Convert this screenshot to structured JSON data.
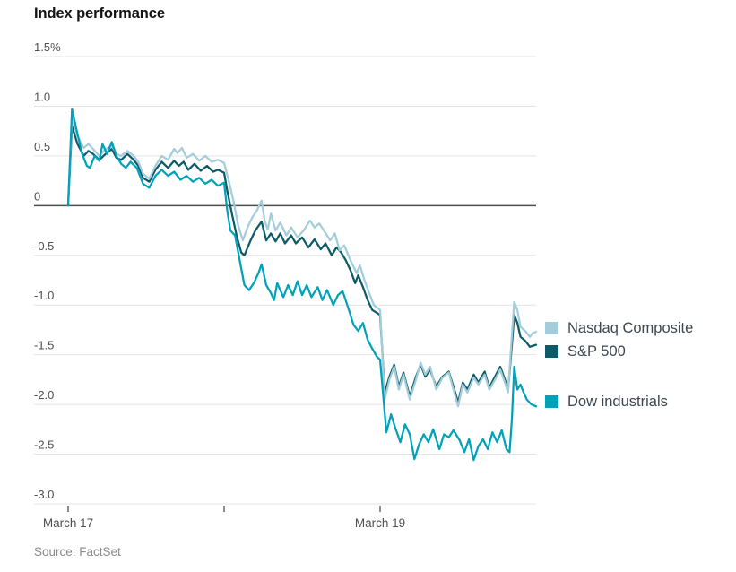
{
  "header": {
    "title": "Index performance"
  },
  "footer": {
    "source": "Source: FactSet"
  },
  "legend": [
    {
      "label": "Nasdaq Composite",
      "color": "#a3cdda"
    },
    {
      "label": "S&P 500",
      "color": "#0d5a68"
    },
    {
      "label": "Dow industrials",
      "color": "#00a2ba"
    }
  ],
  "chart_data": {
    "type": "line",
    "title": "Index performance",
    "unit": "%",
    "xlabel": "",
    "ylabel": "",
    "ylim": [
      -3.0,
      1.5
    ],
    "xlim": [
      0,
      3
    ],
    "grid": true,
    "legend_position": "right",
    "y_ticks": [
      1.5,
      1.0,
      0.5,
      0,
      -0.5,
      -1.0,
      -1.5,
      -2.0,
      -2.5,
      -3.0
    ],
    "y_tick_labels": [
      "1.5%",
      "1.0",
      "0.5",
      "0",
      "-0.5",
      "-1.0",
      "-1.5",
      "-2.0",
      "-2.5",
      "-3.0"
    ],
    "x_ticks": [
      {
        "t": 0,
        "label": "March 17"
      },
      {
        "t": 1,
        "label": ""
      },
      {
        "t": 2,
        "label": "March 19"
      }
    ],
    "colors": {
      "grid": "#e4e4e4",
      "zero_line": "#4c4c4c",
      "axis_text": "#4f4f4f",
      "tick_mark": "#666666"
    },
    "series": [
      {
        "name": "S&P 500",
        "color": "#0d5a68",
        "points": [
          [
            0.0,
            0.0
          ],
          [
            0.025,
            0.8
          ],
          [
            0.06,
            0.62
          ],
          [
            0.08,
            0.56
          ],
          [
            0.1,
            0.5
          ],
          [
            0.13,
            0.55
          ],
          [
            0.16,
            0.52
          ],
          [
            0.2,
            0.46
          ],
          [
            0.24,
            0.52
          ],
          [
            0.28,
            0.57
          ],
          [
            0.31,
            0.48
          ],
          [
            0.34,
            0.46
          ],
          [
            0.38,
            0.52
          ],
          [
            0.42,
            0.46
          ],
          [
            0.45,
            0.4
          ],
          [
            0.48,
            0.28
          ],
          [
            0.52,
            0.24
          ],
          [
            0.56,
            0.36
          ],
          [
            0.6,
            0.44
          ],
          [
            0.64,
            0.38
          ],
          [
            0.68,
            0.45
          ],
          [
            0.71,
            0.4
          ],
          [
            0.74,
            0.44
          ],
          [
            0.77,
            0.36
          ],
          [
            0.81,
            0.42
          ],
          [
            0.85,
            0.35
          ],
          [
            0.89,
            0.4
          ],
          [
            0.93,
            0.34
          ],
          [
            0.96,
            0.36
          ],
          [
            1.0,
            0.33
          ],
          [
            1.02,
            0.15
          ],
          [
            1.05,
            -0.08
          ],
          [
            1.08,
            -0.3
          ],
          [
            1.11,
            -0.47
          ],
          [
            1.13,
            -0.5
          ],
          [
            1.17,
            -0.35
          ],
          [
            1.2,
            -0.25
          ],
          [
            1.24,
            -0.16
          ],
          [
            1.27,
            -0.35
          ],
          [
            1.3,
            -0.28
          ],
          [
            1.33,
            -0.36
          ],
          [
            1.36,
            -0.28
          ],
          [
            1.39,
            -0.38
          ],
          [
            1.43,
            -0.3
          ],
          [
            1.46,
            -0.38
          ],
          [
            1.5,
            -0.32
          ],
          [
            1.54,
            -0.42
          ],
          [
            1.58,
            -0.34
          ],
          [
            1.62,
            -0.44
          ],
          [
            1.65,
            -0.38
          ],
          [
            1.69,
            -0.5
          ],
          [
            1.72,
            -0.42
          ],
          [
            1.75,
            -0.47
          ],
          [
            1.78,
            -0.55
          ],
          [
            1.81,
            -0.65
          ],
          [
            1.84,
            -0.78
          ],
          [
            1.86,
            -0.7
          ],
          [
            1.89,
            -0.82
          ],
          [
            1.92,
            -0.95
          ],
          [
            1.95,
            -1.05
          ],
          [
            1.98,
            -1.08
          ],
          [
            2.0,
            -1.1
          ],
          [
            2.03,
            -1.88
          ],
          [
            2.06,
            -1.72
          ],
          [
            2.09,
            -1.6
          ],
          [
            2.12,
            -1.82
          ],
          [
            2.15,
            -1.68
          ],
          [
            2.19,
            -1.92
          ],
          [
            2.23,
            -1.72
          ],
          [
            2.26,
            -1.6
          ],
          [
            2.29,
            -1.72
          ],
          [
            2.32,
            -1.65
          ],
          [
            2.36,
            -1.82
          ],
          [
            2.4,
            -1.72
          ],
          [
            2.44,
            -1.67
          ],
          [
            2.47,
            -1.82
          ],
          [
            2.5,
            -1.98
          ],
          [
            2.53,
            -1.78
          ],
          [
            2.56,
            -1.85
          ],
          [
            2.6,
            -1.7
          ],
          [
            2.63,
            -1.78
          ],
          [
            2.67,
            -1.67
          ],
          [
            2.7,
            -1.83
          ],
          [
            2.73,
            -1.74
          ],
          [
            2.77,
            -1.62
          ],
          [
            2.8,
            -1.75
          ],
          [
            2.82,
            -1.86
          ],
          [
            2.845,
            -1.4
          ],
          [
            2.86,
            -1.1
          ],
          [
            2.88,
            -1.18
          ],
          [
            2.9,
            -1.32
          ],
          [
            2.93,
            -1.36
          ],
          [
            2.96,
            -1.42
          ],
          [
            3.0,
            -1.4
          ]
        ]
      },
      {
        "name": "Nasdaq Composite",
        "color": "#a3cdda",
        "points": [
          [
            0.0,
            0.0
          ],
          [
            0.025,
            0.88
          ],
          [
            0.06,
            0.7
          ],
          [
            0.08,
            0.64
          ],
          [
            0.1,
            0.58
          ],
          [
            0.13,
            0.62
          ],
          [
            0.16,
            0.57
          ],
          [
            0.2,
            0.5
          ],
          [
            0.24,
            0.57
          ],
          [
            0.28,
            0.6
          ],
          [
            0.31,
            0.52
          ],
          [
            0.34,
            0.5
          ],
          [
            0.38,
            0.55
          ],
          [
            0.42,
            0.5
          ],
          [
            0.45,
            0.44
          ],
          [
            0.48,
            0.32
          ],
          [
            0.52,
            0.27
          ],
          [
            0.56,
            0.4
          ],
          [
            0.6,
            0.5
          ],
          [
            0.64,
            0.46
          ],
          [
            0.68,
            0.57
          ],
          [
            0.7,
            0.53
          ],
          [
            0.73,
            0.58
          ],
          [
            0.76,
            0.48
          ],
          [
            0.8,
            0.52
          ],
          [
            0.84,
            0.45
          ],
          [
            0.88,
            0.5
          ],
          [
            0.92,
            0.44
          ],
          [
            0.96,
            0.46
          ],
          [
            1.0,
            0.43
          ],
          [
            1.03,
            0.25
          ],
          [
            1.06,
            0.05
          ],
          [
            1.09,
            -0.2
          ],
          [
            1.12,
            -0.35
          ],
          [
            1.15,
            -0.22
          ],
          [
            1.18,
            -0.12
          ],
          [
            1.21,
            -0.05
          ],
          [
            1.24,
            0.05
          ],
          [
            1.26,
            -0.15
          ],
          [
            1.28,
            -0.24
          ],
          [
            1.3,
            -0.08
          ],
          [
            1.33,
            -0.25
          ],
          [
            1.36,
            -0.17
          ],
          [
            1.4,
            -0.3
          ],
          [
            1.43,
            -0.22
          ],
          [
            1.47,
            -0.32
          ],
          [
            1.51,
            -0.25
          ],
          [
            1.55,
            -0.15
          ],
          [
            1.58,
            -0.22
          ],
          [
            1.61,
            -0.18
          ],
          [
            1.64,
            -0.25
          ],
          [
            1.68,
            -0.35
          ],
          [
            1.71,
            -0.28
          ],
          [
            1.74,
            -0.45
          ],
          [
            1.77,
            -0.4
          ],
          [
            1.81,
            -0.55
          ],
          [
            1.85,
            -0.68
          ],
          [
            1.87,
            -0.6
          ],
          [
            1.9,
            -0.75
          ],
          [
            1.93,
            -0.88
          ],
          [
            1.96,
            -1.0
          ],
          [
            2.0,
            -1.05
          ],
          [
            2.03,
            -1.95
          ],
          [
            2.06,
            -1.75
          ],
          [
            2.09,
            -1.62
          ],
          [
            2.12,
            -1.85
          ],
          [
            2.15,
            -1.7
          ],
          [
            2.19,
            -1.95
          ],
          [
            2.23,
            -1.75
          ],
          [
            2.26,
            -1.58
          ],
          [
            2.29,
            -1.7
          ],
          [
            2.32,
            -1.62
          ],
          [
            2.36,
            -1.85
          ],
          [
            2.4,
            -1.73
          ],
          [
            2.44,
            -1.68
          ],
          [
            2.47,
            -1.85
          ],
          [
            2.5,
            -2.02
          ],
          [
            2.53,
            -1.8
          ],
          [
            2.56,
            -1.88
          ],
          [
            2.6,
            -1.73
          ],
          [
            2.63,
            -1.8
          ],
          [
            2.67,
            -1.7
          ],
          [
            2.7,
            -1.85
          ],
          [
            2.73,
            -1.77
          ],
          [
            2.77,
            -1.65
          ],
          [
            2.8,
            -1.78
          ],
          [
            2.82,
            -1.88
          ],
          [
            2.845,
            -1.3
          ],
          [
            2.86,
            -0.97
          ],
          [
            2.88,
            -1.05
          ],
          [
            2.9,
            -1.22
          ],
          [
            2.93,
            -1.26
          ],
          [
            2.96,
            -1.32
          ],
          [
            2.98,
            -1.28
          ],
          [
            3.0,
            -1.27
          ]
        ]
      },
      {
        "name": "Dow industrials",
        "color": "#00a2ba",
        "points": [
          [
            0.0,
            0.0
          ],
          [
            0.025,
            0.97
          ],
          [
            0.06,
            0.72
          ],
          [
            0.09,
            0.52
          ],
          [
            0.12,
            0.4
          ],
          [
            0.14,
            0.38
          ],
          [
            0.17,
            0.5
          ],
          [
            0.2,
            0.45
          ],
          [
            0.22,
            0.62
          ],
          [
            0.25,
            0.52
          ],
          [
            0.28,
            0.64
          ],
          [
            0.31,
            0.5
          ],
          [
            0.34,
            0.42
          ],
          [
            0.37,
            0.38
          ],
          [
            0.4,
            0.44
          ],
          [
            0.44,
            0.38
          ],
          [
            0.48,
            0.22
          ],
          [
            0.52,
            0.18
          ],
          [
            0.56,
            0.3
          ],
          [
            0.6,
            0.36
          ],
          [
            0.64,
            0.3
          ],
          [
            0.68,
            0.34
          ],
          [
            0.72,
            0.26
          ],
          [
            0.76,
            0.3
          ],
          [
            0.8,
            0.24
          ],
          [
            0.84,
            0.28
          ],
          [
            0.88,
            0.22
          ],
          [
            0.92,
            0.26
          ],
          [
            0.96,
            0.2
          ],
          [
            1.0,
            0.23
          ],
          [
            1.02,
            -0.05
          ],
          [
            1.04,
            -0.25
          ],
          [
            1.07,
            -0.3
          ],
          [
            1.1,
            -0.55
          ],
          [
            1.13,
            -0.8
          ],
          [
            1.16,
            -0.85
          ],
          [
            1.19,
            -0.78
          ],
          [
            1.22,
            -0.68
          ],
          [
            1.24,
            -0.59
          ],
          [
            1.27,
            -0.8
          ],
          [
            1.3,
            -0.88
          ],
          [
            1.32,
            -0.95
          ],
          [
            1.34,
            -0.78
          ],
          [
            1.38,
            -0.92
          ],
          [
            1.41,
            -0.8
          ],
          [
            1.44,
            -0.9
          ],
          [
            1.47,
            -0.76
          ],
          [
            1.5,
            -0.9
          ],
          [
            1.53,
            -0.8
          ],
          [
            1.56,
            -0.92
          ],
          [
            1.6,
            -0.82
          ],
          [
            1.63,
            -0.95
          ],
          [
            1.66,
            -0.85
          ],
          [
            1.7,
            -1.0
          ],
          [
            1.73,
            -0.9
          ],
          [
            1.76,
            -0.86
          ],
          [
            1.8,
            -1.05
          ],
          [
            1.83,
            -1.2
          ],
          [
            1.86,
            -1.26
          ],
          [
            1.89,
            -1.18
          ],
          [
            1.92,
            -1.35
          ],
          [
            1.95,
            -1.44
          ],
          [
            1.98,
            -1.52
          ],
          [
            2.0,
            -1.55
          ],
          [
            2.04,
            -2.28
          ],
          [
            2.07,
            -2.1
          ],
          [
            2.1,
            -2.25
          ],
          [
            2.13,
            -2.38
          ],
          [
            2.16,
            -2.2
          ],
          [
            2.19,
            -2.3
          ],
          [
            2.22,
            -2.55
          ],
          [
            2.25,
            -2.4
          ],
          [
            2.28,
            -2.3
          ],
          [
            2.31,
            -2.38
          ],
          [
            2.34,
            -2.25
          ],
          [
            2.38,
            -2.45
          ],
          [
            2.41,
            -2.3
          ],
          [
            2.44,
            -2.33
          ],
          [
            2.47,
            -2.26
          ],
          [
            2.51,
            -2.36
          ],
          [
            2.54,
            -2.48
          ],
          [
            2.57,
            -2.35
          ],
          [
            2.6,
            -2.56
          ],
          [
            2.63,
            -2.42
          ],
          [
            2.66,
            -2.35
          ],
          [
            2.69,
            -2.45
          ],
          [
            2.72,
            -2.28
          ],
          [
            2.75,
            -2.38
          ],
          [
            2.78,
            -2.26
          ],
          [
            2.81,
            -2.45
          ],
          [
            2.83,
            -2.48
          ],
          [
            2.845,
            -2.15
          ],
          [
            2.86,
            -1.62
          ],
          [
            2.88,
            -1.85
          ],
          [
            2.9,
            -1.8
          ],
          [
            2.92,
            -1.88
          ],
          [
            2.94,
            -1.95
          ],
          [
            2.97,
            -2.0
          ],
          [
            3.0,
            -2.02
          ]
        ]
      }
    ]
  }
}
